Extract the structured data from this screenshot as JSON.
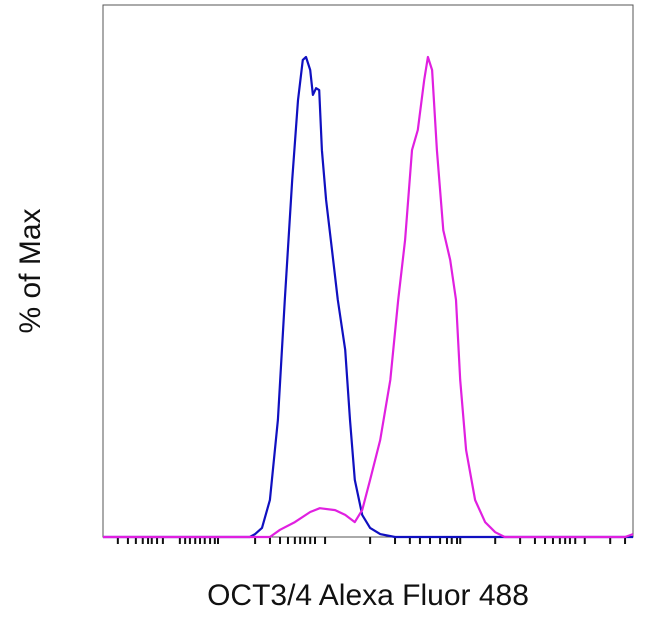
{
  "chart_data": {
    "type": "line",
    "x_label": "OCT3/4 Alexa Fluor 488",
    "y_label": "% of Max",
    "xlim": [
      0,
      100
    ],
    "ylim": [
      0,
      100
    ],
    "xticks": [
      2.8,
      4.7,
      6.2,
      7.5,
      8.5,
      9.2,
      10.2,
      11.3,
      14.5,
      15.5,
      16.4,
      17.4,
      18.3,
      19.2,
      20.2,
      21.1,
      21.7,
      28.7,
      31.5,
      33.4,
      34.9,
      36.2,
      37.2,
      38.1,
      39.1,
      40.0,
      41.9,
      50.4,
      55.1,
      57.9,
      59.8,
      61.7,
      63.6,
      64.9,
      65.8,
      66.8,
      67.4,
      74.0,
      78.7,
      81.5,
      83.4,
      84.9,
      86.2,
      87.2,
      88.1,
      89.1,
      90.9,
      95.7,
      98.5
    ],
    "series": [
      {
        "color": "#1010c0",
        "x": [
          0,
          27.7,
          28.7,
          30.0,
          31.5,
          33.0,
          34.3,
          35.7,
          36.8,
          37.7,
          38.3,
          39.1,
          39.6,
          40.2,
          40.8,
          41.3,
          42.1,
          43.2,
          44.3,
          45.7,
          46.6,
          47.5,
          48.9,
          50.4,
          52.3,
          55.1,
          100
        ],
        "values": [
          0,
          0,
          0.6,
          1.9,
          7.7,
          24.4,
          49.4,
          74.4,
          91.0,
          99.4,
          100,
          97.3,
          92.1,
          93.5,
          93.1,
          80.6,
          70.2,
          59.8,
          49.4,
          39.0,
          24.4,
          11.9,
          4.6,
          1.9,
          0.6,
          0,
          0
        ]
      },
      {
        "color": "#e020e0",
        "x": [
          0,
          31.5,
          33.4,
          36.2,
          39.1,
          40.9,
          43.8,
          45.7,
          47.5,
          48.9,
          50.4,
          52.3,
          54.2,
          55.7,
          57.0,
          58.3,
          59.4,
          60.6,
          61.3,
          62.1,
          63.0,
          64.2,
          65.5,
          66.6,
          67.4,
          68.5,
          70.2,
          72.1,
          74.0,
          75.8,
          98.5,
          100
        ],
        "values": [
          0,
          0,
          1.5,
          3.1,
          5.2,
          6.0,
          5.6,
          4.6,
          3.1,
          5.6,
          11.9,
          20.2,
          32.7,
          49.4,
          61.9,
          80.6,
          84.8,
          95.2,
          100,
          97.3,
          80.6,
          63.9,
          57.7,
          49.4,
          32.7,
          18.1,
          7.7,
          3.1,
          1.0,
          0,
          0,
          0.6
        ]
      }
    ]
  }
}
